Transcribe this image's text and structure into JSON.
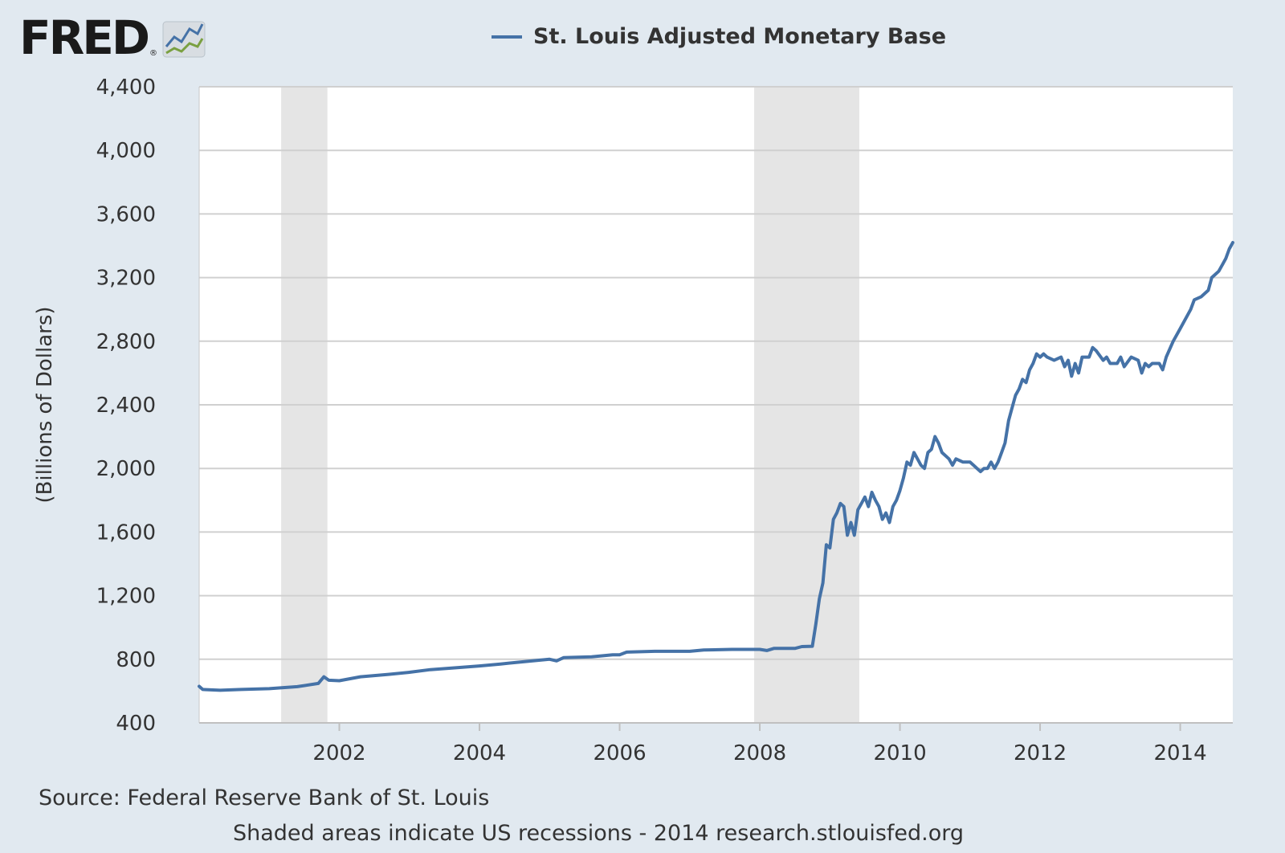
{
  "logo": {
    "text": "FRED",
    "reg": "®",
    "icon": "fred-chart-icon"
  },
  "chart_data": {
    "type": "line",
    "title": "",
    "ylabel": "(Billions of Dollars)",
    "xlabel": "",
    "ylim": [
      400,
      4400
    ],
    "xlim": [
      2000.0,
      2014.75
    ],
    "y_ticks": [
      400,
      800,
      1200,
      1600,
      2000,
      2400,
      2800,
      3200,
      3600,
      4000,
      4400
    ],
    "y_tick_labels": [
      "400",
      "800",
      "1,200",
      "1,600",
      "2,000",
      "2,400",
      "2,800",
      "3,200",
      "3,600",
      "4,000",
      "4,400"
    ],
    "x_ticks": [
      2002,
      2004,
      2006,
      2008,
      2010,
      2012,
      2014
    ],
    "x_tick_labels": [
      "2002",
      "2004",
      "2006",
      "2008",
      "2010",
      "2012",
      "2014"
    ],
    "grid": true,
    "legend_position": "top",
    "recessions": [
      [
        2001.17,
        2001.83
      ],
      [
        2007.92,
        2009.42
      ]
    ],
    "colors": {
      "series": "#4572a7",
      "recession": "#e5e5e5",
      "grid": "#d0d0d0",
      "plot_bg": "#ffffff",
      "page_bg": "#e1e9f0"
    },
    "series": [
      {
        "name": "St. Louis Adjusted Monetary Base",
        "points": [
          [
            2000.0,
            630
          ],
          [
            2000.05,
            610
          ],
          [
            2000.3,
            605
          ],
          [
            2000.6,
            610
          ],
          [
            2001.0,
            615
          ],
          [
            2001.4,
            628
          ],
          [
            2001.7,
            648
          ],
          [
            2001.78,
            690
          ],
          [
            2001.85,
            668
          ],
          [
            2002.0,
            665
          ],
          [
            2002.3,
            690
          ],
          [
            2002.7,
            705
          ],
          [
            2003.0,
            718
          ],
          [
            2003.3,
            735
          ],
          [
            2003.7,
            748
          ],
          [
            2004.0,
            758
          ],
          [
            2004.3,
            770
          ],
          [
            2004.7,
            788
          ],
          [
            2005.0,
            800
          ],
          [
            2005.1,
            790
          ],
          [
            2005.2,
            810
          ],
          [
            2005.6,
            815
          ],
          [
            2005.9,
            828
          ],
          [
            2006.0,
            828
          ],
          [
            2006.1,
            845
          ],
          [
            2006.5,
            850
          ],
          [
            2007.0,
            850
          ],
          [
            2007.2,
            858
          ],
          [
            2007.6,
            862
          ],
          [
            2008.0,
            862
          ],
          [
            2008.1,
            855
          ],
          [
            2008.2,
            868
          ],
          [
            2008.5,
            868
          ],
          [
            2008.6,
            880
          ],
          [
            2008.75,
            882
          ],
          [
            2008.8,
            1020
          ],
          [
            2008.85,
            1180
          ],
          [
            2008.9,
            1280
          ],
          [
            2008.95,
            1520
          ],
          [
            2009.0,
            1500
          ],
          [
            2009.05,
            1680
          ],
          [
            2009.1,
            1720
          ],
          [
            2009.15,
            1780
          ],
          [
            2009.2,
            1760
          ],
          [
            2009.25,
            1580
          ],
          [
            2009.3,
            1660
          ],
          [
            2009.35,
            1580
          ],
          [
            2009.4,
            1740
          ],
          [
            2009.45,
            1780
          ],
          [
            2009.5,
            1820
          ],
          [
            2009.55,
            1760
          ],
          [
            2009.6,
            1850
          ],
          [
            2009.65,
            1800
          ],
          [
            2009.7,
            1760
          ],
          [
            2009.75,
            1680
          ],
          [
            2009.8,
            1720
          ],
          [
            2009.85,
            1660
          ],
          [
            2009.9,
            1760
          ],
          [
            2009.95,
            1800
          ],
          [
            2010.0,
            1860
          ],
          [
            2010.05,
            1940
          ],
          [
            2010.1,
            2040
          ],
          [
            2010.15,
            2020
          ],
          [
            2010.2,
            2100
          ],
          [
            2010.25,
            2060
          ],
          [
            2010.3,
            2020
          ],
          [
            2010.35,
            2000
          ],
          [
            2010.4,
            2100
          ],
          [
            2010.45,
            2120
          ],
          [
            2010.5,
            2200
          ],
          [
            2010.55,
            2160
          ],
          [
            2010.6,
            2100
          ],
          [
            2010.7,
            2060
          ],
          [
            2010.75,
            2020
          ],
          [
            2010.8,
            2060
          ],
          [
            2010.9,
            2040
          ],
          [
            2011.0,
            2040
          ],
          [
            2011.05,
            2020
          ],
          [
            2011.1,
            2000
          ],
          [
            2011.15,
            1980
          ],
          [
            2011.2,
            2000
          ],
          [
            2011.25,
            2000
          ],
          [
            2011.3,
            2040
          ],
          [
            2011.35,
            2000
          ],
          [
            2011.4,
            2040
          ],
          [
            2011.45,
            2100
          ],
          [
            2011.5,
            2160
          ],
          [
            2011.55,
            2300
          ],
          [
            2011.6,
            2380
          ],
          [
            2011.65,
            2460
          ],
          [
            2011.7,
            2500
          ],
          [
            2011.75,
            2560
          ],
          [
            2011.8,
            2540
          ],
          [
            2011.85,
            2620
          ],
          [
            2011.9,
            2660
          ],
          [
            2011.95,
            2720
          ],
          [
            2012.0,
            2700
          ],
          [
            2012.05,
            2720
          ],
          [
            2012.1,
            2700
          ],
          [
            2012.2,
            2680
          ],
          [
            2012.3,
            2700
          ],
          [
            2012.35,
            2640
          ],
          [
            2012.4,
            2680
          ],
          [
            2012.45,
            2580
          ],
          [
            2012.5,
            2660
          ],
          [
            2012.55,
            2600
          ],
          [
            2012.6,
            2700
          ],
          [
            2012.7,
            2700
          ],
          [
            2012.75,
            2760
          ],
          [
            2012.8,
            2740
          ],
          [
            2012.9,
            2680
          ],
          [
            2012.95,
            2700
          ],
          [
            2013.0,
            2660
          ],
          [
            2013.1,
            2660
          ],
          [
            2013.15,
            2700
          ],
          [
            2013.2,
            2640
          ],
          [
            2013.3,
            2700
          ],
          [
            2013.4,
            2680
          ],
          [
            2013.45,
            2600
          ],
          [
            2013.5,
            2660
          ],
          [
            2013.55,
            2640
          ],
          [
            2013.6,
            2660
          ],
          [
            2013.7,
            2660
          ],
          [
            2013.75,
            2620
          ],
          [
            2013.8,
            2700
          ],
          [
            2013.9,
            2800
          ],
          [
            2014.0,
            2880
          ],
          [
            2014.1,
            2960
          ],
          [
            2014.15,
            3000
          ],
          [
            2014.2,
            3060
          ],
          [
            2014.3,
            3080
          ],
          [
            2014.4,
            3120
          ],
          [
            2014.45,
            3200
          ],
          [
            2014.5,
            3220
          ],
          [
            2014.55,
            3240
          ],
          [
            2014.6,
            3280
          ],
          [
            2014.65,
            3320
          ],
          [
            2014.7,
            3380
          ],
          [
            2014.75,
            3420
          ]
        ]
      }
    ]
  },
  "footer": {
    "source": "Source: Federal Reserve Bank of St. Louis",
    "note": "Shaded areas indicate US recessions - 2014 research.stlouisfed.org"
  }
}
